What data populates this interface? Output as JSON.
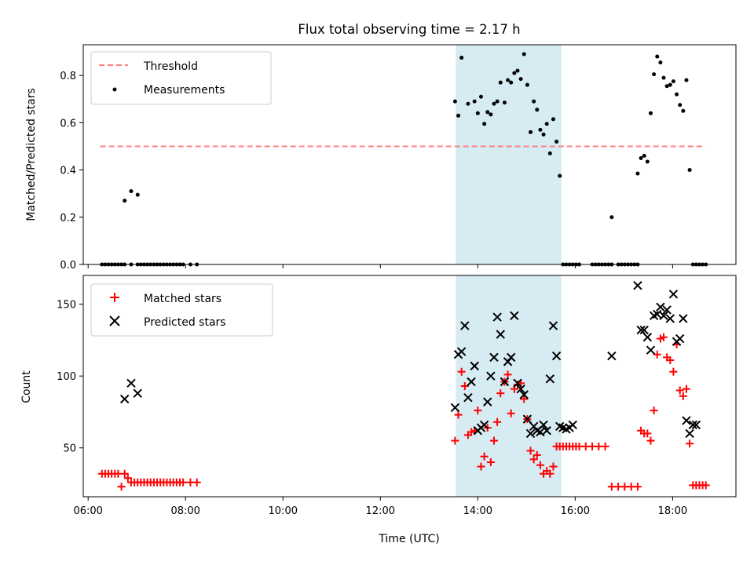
{
  "chart_data": [
    {
      "type": "scatter",
      "title": "Flux total observing time = 2.17 h",
      "xlabel": "",
      "ylabel": "Matched/Predicted stars",
      "xlim": [
        "05:54",
        "19:18"
      ],
      "ylim": [
        0,
        0.93
      ],
      "xticks": [
        "06:00",
        "08:00",
        "10:00",
        "12:00",
        "14:00",
        "16:00",
        "18:00"
      ],
      "yticks": [
        "0.0",
        "0.2",
        "0.4",
        "0.6",
        "0.8"
      ],
      "legend_position": "top-left",
      "highlight_span": {
        "x": [
          "13:33",
          "15:43"
        ],
        "color": "#add8e6"
      },
      "threshold": {
        "name": "Threshold",
        "value": 0.5,
        "x": [
          "06:15",
          "18:40"
        ],
        "color": "#ff7f7f"
      },
      "series": [
        {
          "name": "Measurements",
          "color": "#000000",
          "x": [
            "06:17",
            "06:21",
            "06:25",
            "06:29",
            "06:33",
            "06:37",
            "06:41",
            "06:45",
            "06:53",
            "07:01",
            "07:05",
            "07:09",
            "07:13",
            "07:17",
            "07:21",
            "07:25",
            "07:29",
            "07:33",
            "07:37",
            "07:41",
            "07:45",
            "07:49",
            "07:53",
            "07:57",
            "08:06",
            "08:14",
            "06:45",
            "06:53",
            "07:01",
            "13:32",
            "13:36",
            "13:40",
            "13:48",
            "13:56",
            "14:00",
            "14:04",
            "14:08",
            "14:12",
            "14:16",
            "14:20",
            "14:24",
            "14:28",
            "14:33",
            "14:37",
            "14:41",
            "14:45",
            "14:49",
            "14:53",
            "14:57",
            "15:01",
            "15:05",
            "15:09",
            "15:13",
            "15:17",
            "15:21",
            "15:25",
            "15:29",
            "15:33",
            "15:37",
            "15:41",
            "15:45",
            "15:49",
            "15:53",
            "15:57",
            "16:01",
            "16:05",
            "16:21",
            "16:25",
            "16:29",
            "16:33",
            "16:37",
            "16:41",
            "16:45",
            "16:53",
            "16:57",
            "17:01",
            "17:05",
            "17:09",
            "17:13",
            "17:17",
            "16:45",
            "17:17",
            "17:21",
            "17:25",
            "17:29",
            "17:33",
            "17:37",
            "17:41",
            "17:45",
            "17:49",
            "17:53",
            "17:57",
            "18:01",
            "18:05",
            "18:09",
            "18:13",
            "18:17",
            "18:21",
            "18:25",
            "18:29",
            "18:33",
            "18:37",
            "18:41"
          ],
          "y": [
            0,
            0,
            0,
            0,
            0,
            0,
            0,
            0,
            0,
            0,
            0,
            0,
            0,
            0,
            0,
            0,
            0,
            0,
            0,
            0,
            0,
            0,
            0,
            0,
            0,
            0,
            0.27,
            0.31,
            0.295,
            0.69,
            0.63,
            0.875,
            0.68,
            0.69,
            0.64,
            0.71,
            0.595,
            0.645,
            0.635,
            0.68,
            0.69,
            0.77,
            0.685,
            0.78,
            0.77,
            0.81,
            0.82,
            0.785,
            0.89,
            0.76,
            0.56,
            0.69,
            0.655,
            0.57,
            0.55,
            0.595,
            0.47,
            0.615,
            0.52,
            0.375,
            0,
            0,
            0,
            0,
            0,
            0,
            0,
            0,
            0,
            0,
            0,
            0,
            0,
            0,
            0,
            0,
            0,
            0,
            0,
            0,
            0.2,
            0.385,
            0.45,
            0.46,
            0.435,
            0.64,
            0.805,
            0.88,
            0.855,
            0.79,
            0.755,
            0.76,
            0.775,
            0.72,
            0.675,
            0.65,
            0.78,
            0.4,
            0,
            0,
            0,
            0,
            0
          ]
        }
      ]
    },
    {
      "type": "scatter",
      "title": "",
      "xlabel": "Time (UTC)",
      "ylabel": "Count",
      "xlim": [
        "05:54",
        "19:18"
      ],
      "ylim": [
        16,
        170
      ],
      "xticks": [
        "06:00",
        "08:00",
        "10:00",
        "12:00",
        "14:00",
        "16:00",
        "18:00"
      ],
      "yticks": [
        "50",
        "100",
        "150"
      ],
      "legend_position": "top-left",
      "highlight_span": {
        "x": [
          "13:33",
          "15:43"
        ],
        "color": "#add8e6"
      },
      "series": [
        {
          "name": "Matched stars",
          "marker": "+",
          "color": "#ff0000",
          "x": [
            "06:17",
            "06:21",
            "06:25",
            "06:29",
            "06:33",
            "06:37",
            "06:41",
            "06:45",
            "06:49",
            "06:53",
            "06:57",
            "07:01",
            "07:05",
            "07:09",
            "07:13",
            "07:17",
            "07:21",
            "07:25",
            "07:29",
            "07:33",
            "07:37",
            "07:41",
            "07:45",
            "07:49",
            "07:53",
            "07:57",
            "08:06",
            "08:14",
            "13:32",
            "13:36",
            "13:40",
            "13:44",
            "13:48",
            "13:52",
            "13:56",
            "14:00",
            "14:04",
            "14:08",
            "14:12",
            "14:16",
            "14:20",
            "14:24",
            "14:28",
            "14:33",
            "14:37",
            "14:41",
            "14:45",
            "14:49",
            "14:53",
            "14:57",
            "15:01",
            "15:05",
            "15:09",
            "15:13",
            "15:17",
            "15:21",
            "15:25",
            "15:29",
            "15:33",
            "15:37",
            "15:41",
            "15:45",
            "15:49",
            "15:53",
            "15:57",
            "16:01",
            "16:05",
            "16:13",
            "16:21",
            "16:29",
            "16:37",
            "16:45",
            "16:53",
            "17:01",
            "17:09",
            "17:17",
            "17:21",
            "17:25",
            "17:29",
            "17:33",
            "17:37",
            "17:41",
            "17:45",
            "17:49",
            "17:53",
            "17:57",
            "18:01",
            "18:05",
            "18:09",
            "18:13",
            "18:17",
            "18:21",
            "18:25",
            "18:29",
            "18:33",
            "18:37",
            "18:41"
          ],
          "y": [
            32,
            32,
            32,
            32,
            32,
            32,
            23,
            32,
            29,
            26,
            26,
            26,
            26,
            26,
            26,
            26,
            26,
            26,
            26,
            26,
            26,
            26,
            26,
            26,
            26,
            26,
            26,
            26,
            55,
            73,
            103,
            93,
            59,
            61,
            62,
            76,
            37,
            44,
            64,
            40,
            55,
            68,
            88,
            96,
            101,
            74,
            91,
            94,
            95,
            84,
            70,
            48,
            42,
            45,
            38,
            32,
            34,
            32,
            37,
            51,
            51,
            51,
            51,
            51,
            51,
            51,
            51,
            51,
            51,
            51,
            51,
            23,
            23,
            23,
            23,
            23,
            62,
            60,
            60,
            55,
            76,
            115,
            126,
            127,
            113,
            111,
            103,
            122,
            90,
            86,
            91,
            53,
            24,
            24,
            24,
            24,
            24
          ],
          "note": ""
        },
        {
          "name": "Predicted stars",
          "marker": "x",
          "color": "#000000",
          "x": [
            "06:45",
            "06:53",
            "07:01",
            "13:32",
            "13:36",
            "13:40",
            "13:44",
            "13:48",
            "13:52",
            "13:56",
            "14:00",
            "14:04",
            "14:08",
            "14:12",
            "14:16",
            "14:20",
            "14:24",
            "14:28",
            "14:33",
            "14:37",
            "14:41",
            "14:45",
            "14:49",
            "14:53",
            "14:57",
            "15:01",
            "15:05",
            "15:09",
            "15:13",
            "15:17",
            "15:21",
            "15:25",
            "15:29",
            "15:33",
            "15:37",
            "15:41",
            "15:45",
            "15:49",
            "15:53",
            "15:57",
            "16:45",
            "17:17",
            "17:21",
            "17:25",
            "17:29",
            "17:33",
            "17:37",
            "17:41",
            "17:45",
            "17:49",
            "17:53",
            "17:57",
            "18:01",
            "18:05",
            "18:09",
            "18:13",
            "18:17",
            "18:21",
            "18:25",
            "18:29"
          ],
          "y": [
            84,
            95,
            88,
            78,
            115,
            117,
            135,
            85,
            96,
            107,
            62,
            64,
            66,
            82,
            100,
            113,
            141,
            129,
            96,
            110,
            113,
            142,
            95,
            91,
            87,
            70,
            60,
            65,
            62,
            61,
            66,
            62,
            98,
            135,
            114,
            65,
            64,
            63,
            64,
            66,
            114,
            163,
            132,
            132,
            127,
            118,
            142,
            143,
            148,
            142,
            146,
            140,
            157,
            124,
            126,
            140,
            69,
            60,
            66,
            66
          ]
        }
      ]
    }
  ]
}
